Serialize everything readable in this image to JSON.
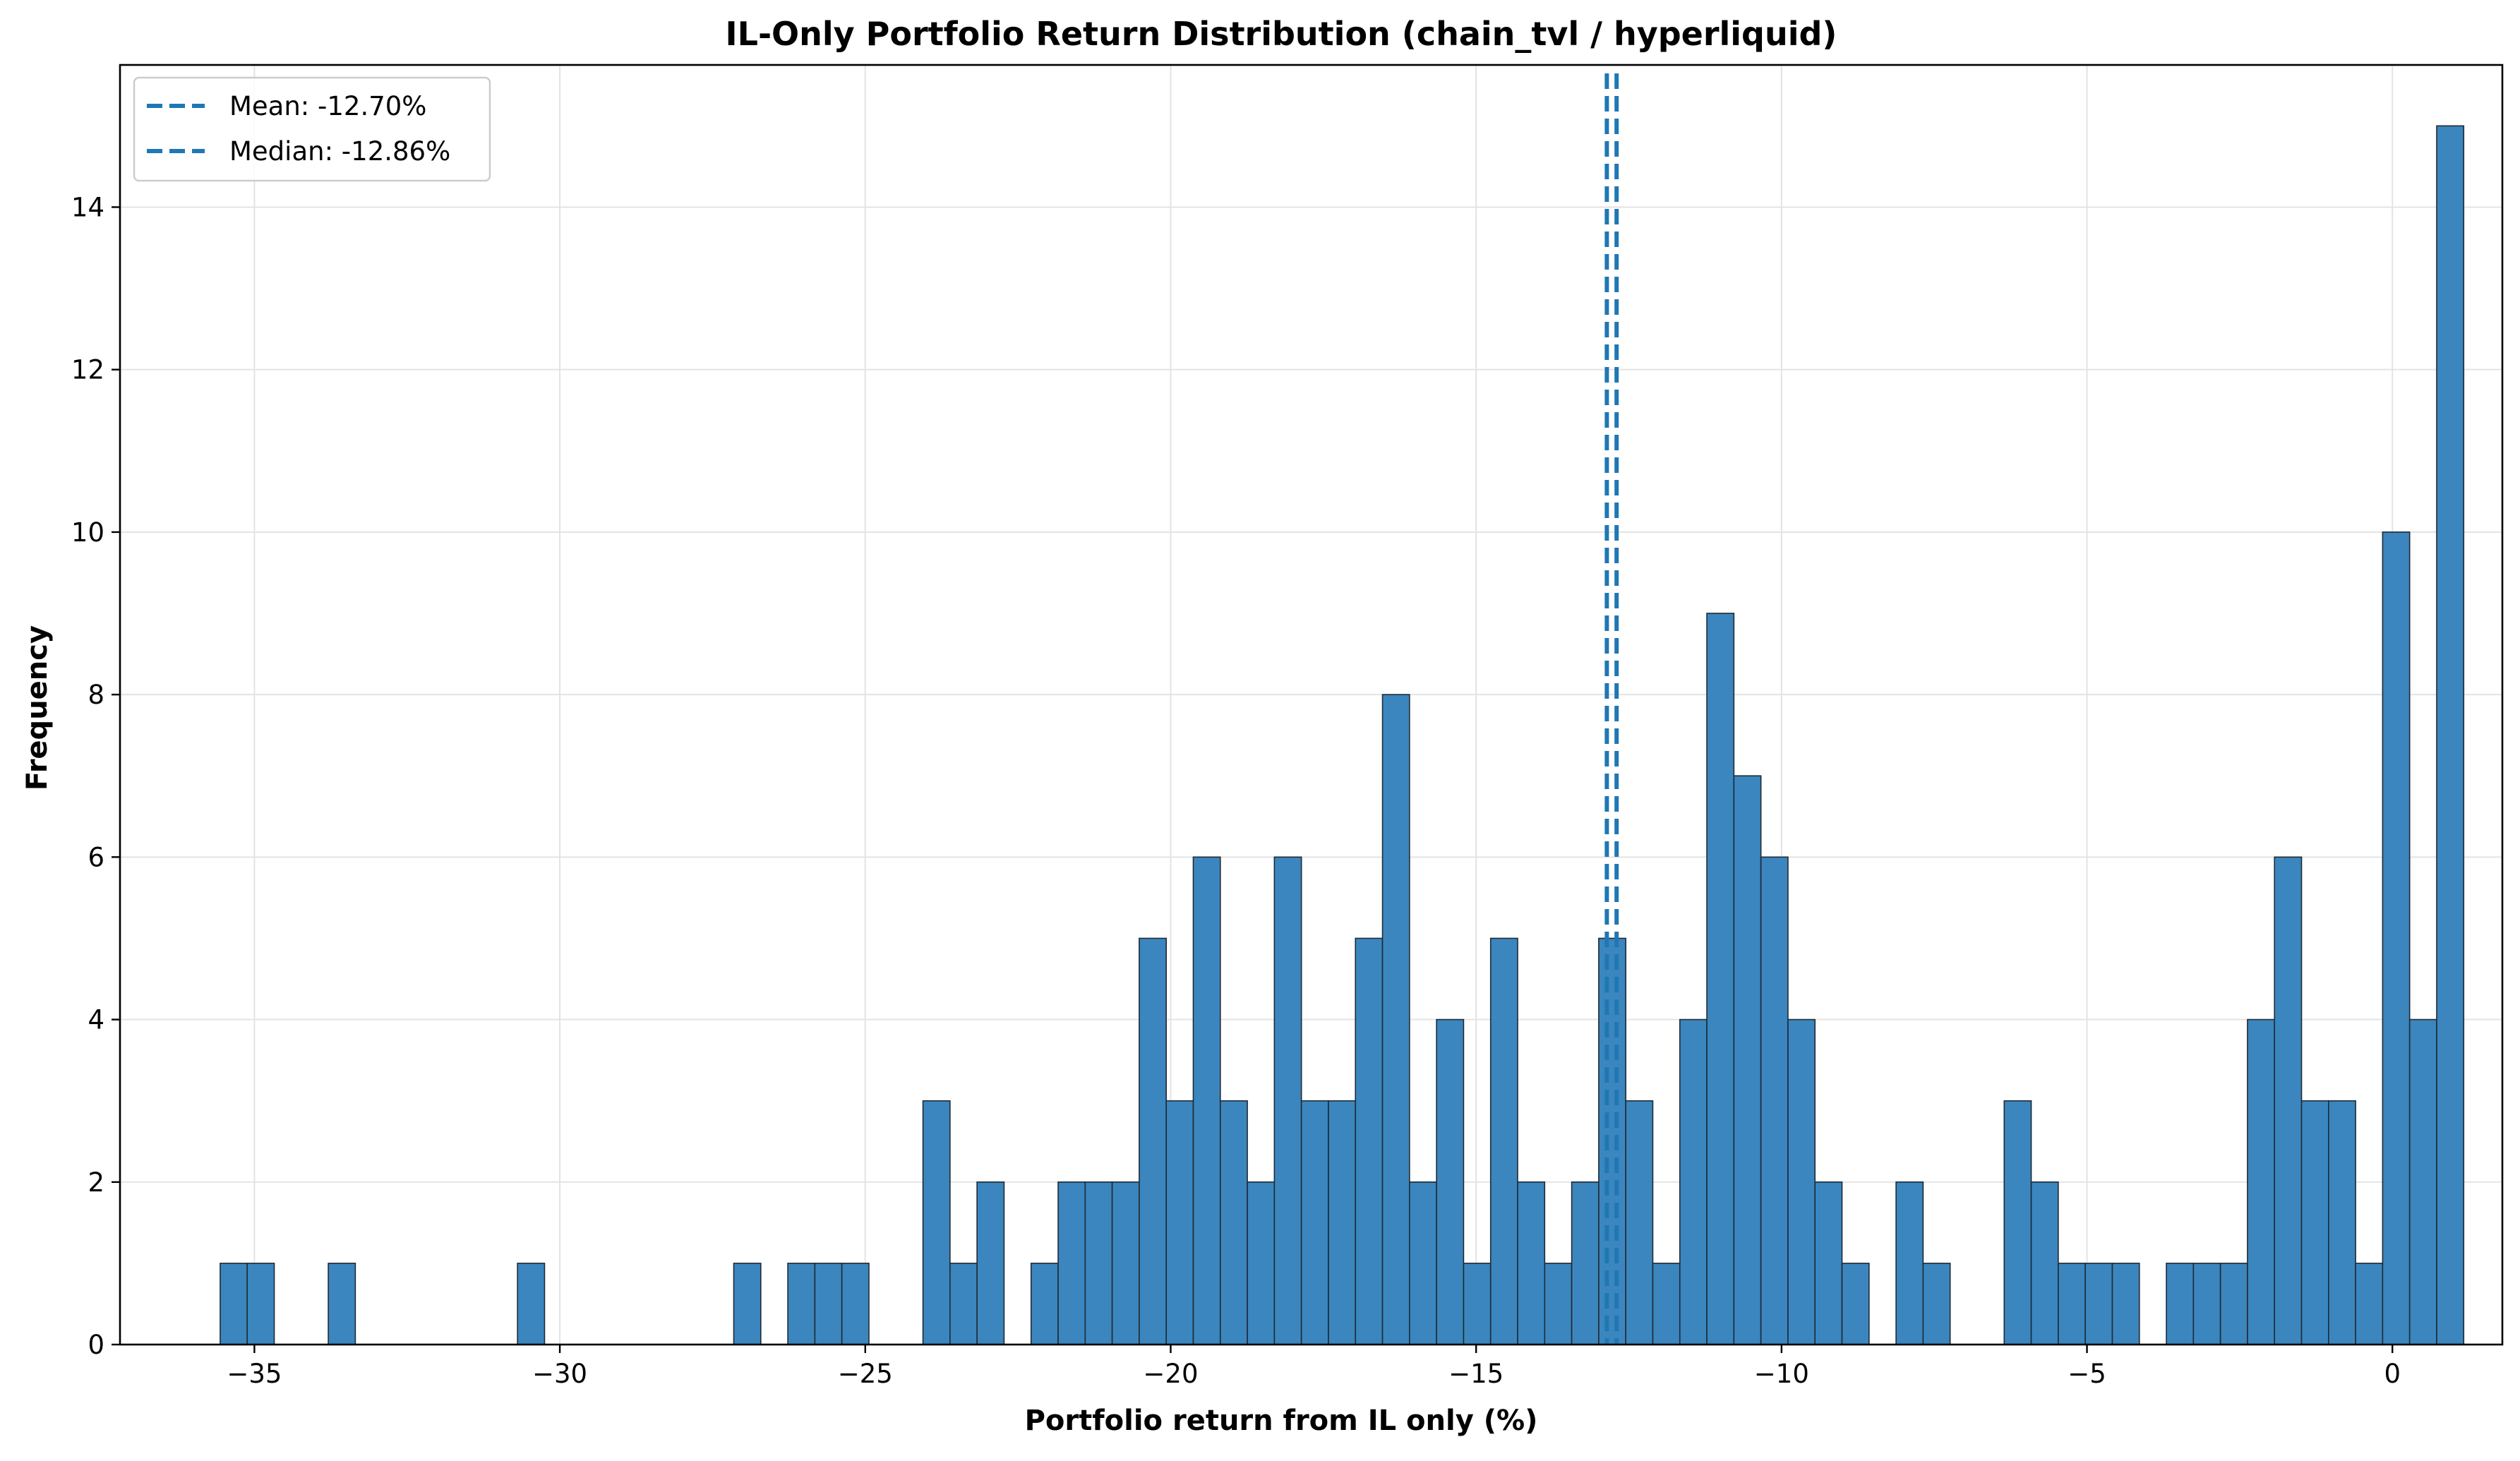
{
  "chart_data": {
    "type": "bar",
    "title": "IL-Only Portfolio Return Distribution (chain_tvl / hyperliquid)",
    "xlabel": "Portfolio return from IL only (%)",
    "ylabel": "Frequency",
    "xlim": [
      -37.2,
      1.8
    ],
    "ylim": [
      0,
      15.75
    ],
    "x_ticks": [
      -35,
      -30,
      -25,
      -20,
      -15,
      -10,
      -5,
      0
    ],
    "x_tick_labels": [
      "−35",
      "−30",
      "−25",
      "−20",
      "−15",
      "−10",
      "−5",
      "0"
    ],
    "y_ticks": [
      0,
      2,
      4,
      6,
      8,
      10,
      12,
      14
    ],
    "y_tick_labels": [
      "0",
      "2",
      "4",
      "6",
      "8",
      "10",
      "12",
      "14"
    ],
    "grid": true,
    "legend_position": "top-left",
    "bin_width": 0.4425,
    "bin_start": -35.56,
    "bin_counts": [
      1,
      1,
      0,
      0,
      1,
      0,
      0,
      0,
      0,
      0,
      0,
      1,
      0,
      0,
      0,
      0,
      0,
      0,
      0,
      1,
      0,
      1,
      1,
      1,
      0,
      0,
      3,
      1,
      2,
      0,
      1,
      2,
      2,
      2,
      5,
      3,
      6,
      3,
      2,
      6,
      3,
      3,
      5,
      8,
      2,
      4,
      1,
      5,
      2,
      1,
      2,
      5,
      3,
      1,
      4,
      9,
      7,
      6,
      4,
      2,
      1,
      0,
      2,
      1,
      0,
      0,
      3,
      2,
      1,
      1,
      1,
      0,
      1,
      1,
      1,
      4,
      6,
      3,
      3,
      1,
      10,
      4,
      15
    ],
    "bar_color": "#3b86be",
    "bar_edge_color": "#1f2a35",
    "lines": [
      {
        "name": "Mean: -12.70%",
        "x": -12.7,
        "color": "#1f77b4",
        "style": "dashed"
      },
      {
        "name": "Median: -12.86%",
        "x": -12.86,
        "color": "#1f77b4",
        "style": "dashed"
      }
    ]
  }
}
